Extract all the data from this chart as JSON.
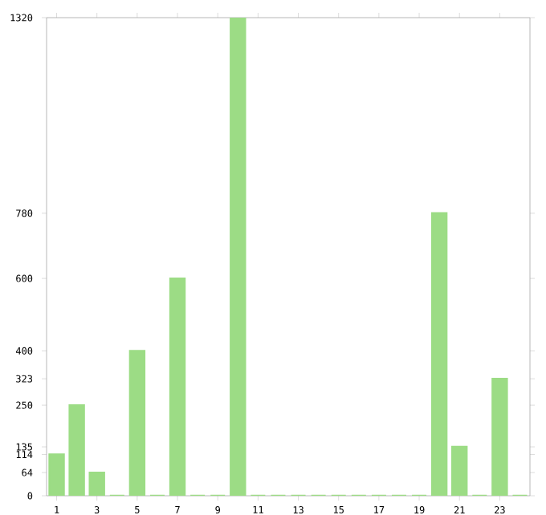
{
  "chart_data": {
    "type": "bar",
    "categories": [
      "1",
      null,
      "3",
      null,
      "5",
      null,
      "7",
      null,
      "9",
      null,
      "11",
      null,
      "13",
      null,
      "15",
      null,
      "17",
      null,
      "19",
      null,
      "21",
      null,
      "23",
      null
    ],
    "values": [
      114,
      250,
      64,
      0,
      400,
      0,
      600,
      0,
      0,
      1320,
      0,
      0,
      0,
      0,
      0,
      0,
      0,
      0,
      0,
      780,
      135,
      0,
      323,
      0
    ],
    "color": "#9cdc85",
    "ylim": [
      0,
      1320
    ],
    "yticks": [
      0,
      64,
      114,
      135,
      250,
      323,
      400,
      600,
      780,
      1320
    ]
  }
}
